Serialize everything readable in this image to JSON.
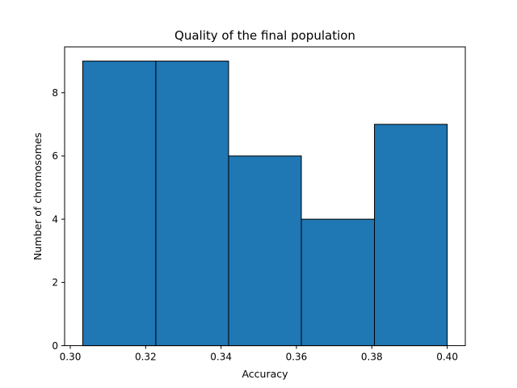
{
  "chart_data": {
    "type": "histogram",
    "title": "Quality of the final population",
    "xlabel": "Accuracy",
    "ylabel": "Number of chromosomes",
    "bins": [
      {
        "start": 0.3033,
        "end": 0.3227,
        "count": 9
      },
      {
        "start": 0.3227,
        "end": 0.342,
        "count": 9
      },
      {
        "start": 0.342,
        "end": 0.3613,
        "count": 6
      },
      {
        "start": 0.3613,
        "end": 0.3807,
        "count": 4
      },
      {
        "start": 0.3807,
        "end": 0.4,
        "count": 7
      }
    ],
    "xlim": [
      0.2985,
      0.4048
    ],
    "ylim": [
      0,
      9.45
    ],
    "xticks": [
      "0.30",
      "0.32",
      "0.34",
      "0.36",
      "0.38",
      "0.40"
    ],
    "yticks": [
      "0",
      "2",
      "4",
      "6",
      "8"
    ],
    "bar_color": "#1f77b4",
    "edge_color": "#000000",
    "grid": false
  }
}
